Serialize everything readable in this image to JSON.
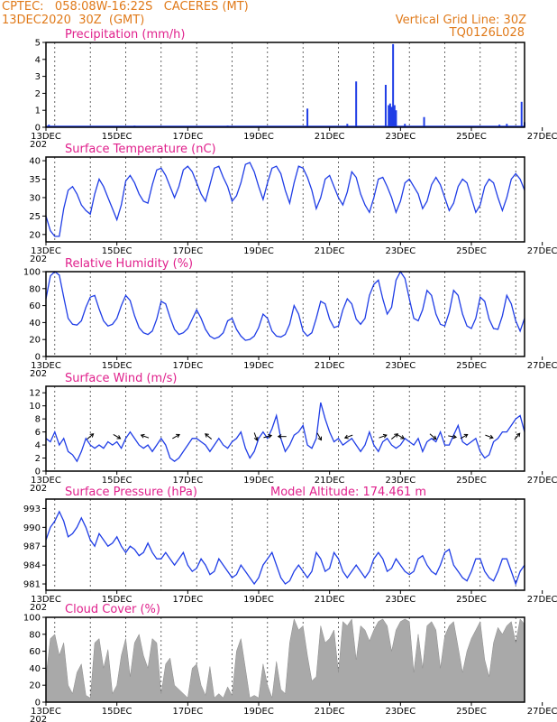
{
  "header": {
    "line1": "CPTEC:   058:08W-16:22S   CACERES (MT)",
    "line2": "13DEC2020  30Z  (GMT)",
    "vertical_grid": "Vertical Grid Line: 30Z",
    "run_id": "TQ0126L028"
  },
  "colors": {
    "header": "#e07a1a",
    "title": "#e0208c",
    "series": "#1f3de6",
    "cloud": "#a9a9a9"
  },
  "x_labels": [
    "13DEC",
    "15DEC",
    "17DEC",
    "19DEC",
    "21DEC",
    "23DEC",
    "25DEC",
    "27DEC"
  ],
  "x_sublabel": "202",
  "chart_data": [
    {
      "id": "precip",
      "type": "bar",
      "title": "Precipitation (mm/h)",
      "ylim": [
        0,
        5
      ],
      "yticks": [
        0,
        1,
        2,
        3,
        4,
        5
      ],
      "x_unit": "hours since 13DEC 00Z",
      "points": [
        [
          2,
          0.15
        ],
        [
          22,
          0.05
        ],
        [
          60,
          0.1
        ],
        [
          123,
          0.1
        ],
        [
          146,
          0.05
        ],
        [
          177,
          1.1
        ],
        [
          204,
          0.2
        ],
        [
          210,
          2.7
        ],
        [
          230,
          2.5
        ],
        [
          232,
          1.3
        ],
        [
          233,
          1.4
        ],
        [
          234,
          1.2
        ],
        [
          235,
          4.9
        ],
        [
          236,
          1.3
        ],
        [
          237,
          1.0
        ],
        [
          243,
          0.2
        ],
        [
          256,
          0.6
        ],
        [
          307,
          0.15
        ],
        [
          312,
          0.2
        ],
        [
          322,
          1.5
        ],
        [
          324,
          0.3
        ]
      ]
    },
    {
      "id": "temp",
      "type": "line",
      "title": "Surface Temperature (nC)",
      "ylim": [
        18,
        41
      ],
      "yticks": [
        20,
        25,
        30,
        35,
        40
      ],
      "x": [
        0,
        3,
        6,
        9,
        12,
        15,
        18,
        21,
        24,
        27,
        30,
        33,
        36,
        39,
        42,
        45,
        48,
        51,
        54,
        57,
        60,
        63,
        66,
        69,
        72,
        75,
        78,
        81,
        84,
        87,
        90,
        93,
        96,
        99,
        102,
        105,
        108,
        111,
        114,
        117,
        120,
        123,
        126,
        129,
        132,
        135,
        138,
        141,
        144,
        147,
        150,
        153,
        156,
        159,
        162,
        165,
        168,
        171,
        174,
        177,
        180,
        183,
        186,
        189,
        192,
        195,
        198,
        201,
        204,
        207,
        210,
        213,
        216,
        219,
        222,
        225,
        228,
        231,
        234,
        237,
        240,
        243,
        246,
        249,
        252,
        255,
        258,
        261,
        264,
        267,
        270,
        273,
        276,
        279,
        282,
        285,
        288,
        291,
        294,
        297,
        300,
        303,
        306,
        309,
        312,
        315,
        318,
        321,
        324
      ],
      "y": [
        25,
        21,
        19.5,
        19.5,
        27,
        32,
        33,
        31,
        28,
        26.5,
        25.5,
        31,
        35,
        33,
        30,
        27,
        24,
        28,
        34.5,
        36,
        34,
        31,
        29,
        28.5,
        33.5,
        37.5,
        38,
        36,
        33,
        30,
        33,
        37.5,
        38.5,
        37,
        34,
        31,
        29,
        33.5,
        38,
        38.5,
        35.5,
        33,
        29,
        30.5,
        34,
        39,
        39.5,
        37,
        33,
        29.5,
        34,
        38,
        38.5,
        36.5,
        32,
        28.5,
        34,
        38.5,
        38,
        35.5,
        32,
        27,
        30,
        35,
        36,
        33,
        30,
        28,
        31.5,
        37,
        35.5,
        31,
        28,
        26,
        30,
        35,
        35.5,
        33,
        30,
        26,
        29,
        34,
        35,
        33,
        31,
        27,
        29,
        33.5,
        35.5,
        33.5,
        30,
        26.5,
        28.5,
        33,
        35,
        34,
        30,
        26,
        28,
        33,
        35,
        34,
        30,
        26.5,
        30,
        35,
        36.5,
        35,
        32
      ]
    },
    {
      "id": "rh",
      "type": "line",
      "title": "Relative Humidity (%)",
      "ylim": [
        0,
        100
      ],
      "yticks": [
        0,
        20,
        40,
        60,
        80,
        100
      ],
      "x": [
        0,
        3,
        6,
        9,
        12,
        15,
        18,
        21,
        24,
        27,
        30,
        33,
        36,
        39,
        42,
        45,
        48,
        51,
        54,
        57,
        60,
        63,
        66,
        69,
        72,
        75,
        78,
        81,
        84,
        87,
        90,
        93,
        96,
        99,
        102,
        105,
        108,
        111,
        114,
        117,
        120,
        123,
        126,
        129,
        132,
        135,
        138,
        141,
        144,
        147,
        150,
        153,
        156,
        159,
        162,
        165,
        168,
        171,
        174,
        177,
        180,
        183,
        186,
        189,
        192,
        195,
        198,
        201,
        204,
        207,
        210,
        213,
        216,
        219,
        222,
        225,
        228,
        231,
        234,
        237,
        240,
        243,
        246,
        249,
        252,
        255,
        258,
        261,
        264,
        267,
        270,
        273,
        276,
        279,
        282,
        285,
        288,
        291,
        294,
        297,
        300,
        303,
        306,
        309,
        312,
        315,
        318,
        321,
        324
      ],
      "y": [
        68,
        95,
        100,
        96,
        70,
        45,
        38,
        37,
        42,
        58,
        70,
        72,
        56,
        42,
        36,
        38,
        45,
        60,
        72,
        66,
        48,
        34,
        28,
        26,
        30,
        44,
        65,
        62,
        46,
        32,
        26,
        28,
        33,
        44,
        55,
        45,
        32,
        24,
        21,
        23,
        28,
        42,
        45,
        32,
        24,
        19,
        20,
        24,
        34,
        50,
        45,
        30,
        24,
        23,
        26,
        38,
        60,
        50,
        30,
        24,
        28,
        45,
        65,
        62,
        44,
        34,
        36,
        55,
        68,
        62,
        44,
        38,
        45,
        72,
        85,
        90,
        68,
        50,
        58,
        90,
        100,
        92,
        68,
        45,
        42,
        55,
        78,
        72,
        50,
        38,
        36,
        52,
        78,
        72,
        50,
        36,
        33,
        45,
        70,
        65,
        44,
        33,
        32,
        48,
        72,
        62,
        42,
        30,
        45
      ]
    },
    {
      "id": "wind",
      "type": "line",
      "title": "Surface Wind (m/s)",
      "ylim": [
        0,
        13
      ],
      "yticks": [
        0,
        2,
        4,
        6,
        8,
        10,
        12
      ],
      "x": [
        0,
        3,
        6,
        9,
        12,
        15,
        18,
        21,
        24,
        27,
        30,
        33,
        36,
        39,
        42,
        45,
        48,
        51,
        54,
        57,
        60,
        63,
        66,
        69,
        72,
        75,
        78,
        81,
        84,
        87,
        90,
        93,
        96,
        99,
        102,
        105,
        108,
        111,
        114,
        117,
        120,
        123,
        126,
        129,
        132,
        135,
        138,
        141,
        144,
        147,
        150,
        153,
        156,
        159,
        162,
        165,
        168,
        171,
        174,
        177,
        180,
        183,
        186,
        189,
        192,
        195,
        198,
        201,
        204,
        207,
        210,
        213,
        216,
        219,
        222,
        225,
        228,
        231,
        234,
        237,
        240,
        243,
        246,
        249,
        252,
        255,
        258,
        261,
        264,
        267,
        270,
        273,
        276,
        279,
        282,
        285,
        288,
        291,
        294,
        297,
        300,
        303,
        306,
        309,
        312,
        315,
        318,
        321,
        324
      ],
      "y": [
        5,
        4.5,
        6,
        4,
        5,
        3,
        2.5,
        1.5,
        3,
        5,
        4,
        3.5,
        4,
        3.5,
        4.5,
        4,
        4.5,
        3.5,
        5,
        6,
        5,
        4,
        3.5,
        4,
        3,
        4,
        5,
        4,
        2,
        1.5,
        2,
        3,
        4,
        5,
        5,
        4.5,
        4,
        3,
        4,
        5,
        4,
        3.5,
        4.5,
        5,
        6,
        3.5,
        2,
        3,
        5,
        6,
        5,
        6.5,
        8.5,
        5,
        3,
        4,
        5.5,
        6,
        7,
        4,
        3.5,
        5,
        10.5,
        8,
        6,
        4.5,
        5,
        4,
        4.5,
        5,
        4,
        3,
        4,
        6,
        4,
        3,
        4.5,
        5,
        4,
        3.5,
        4,
        5,
        4.5,
        4,
        5,
        3,
        4.5,
        5,
        4.5,
        6,
        4,
        4,
        5.5,
        7,
        4.5,
        4,
        4.5,
        5,
        3,
        2,
        2.5,
        4.5,
        5,
        6,
        6,
        7,
        8,
        8.5,
        6
      ]
    },
    {
      "id": "pres",
      "type": "line",
      "title": "Surface Pressure (hPa)",
      "model_altitude": "Model Altitude: 174.461  m",
      "ylim": [
        980,
        994.5
      ],
      "yticks": [
        981,
        984,
        987,
        990,
        993
      ],
      "x": [
        0,
        3,
        6,
        9,
        12,
        15,
        18,
        21,
        24,
        27,
        30,
        33,
        36,
        39,
        42,
        45,
        48,
        51,
        54,
        57,
        60,
        63,
        66,
        69,
        72,
        75,
        78,
        81,
        84,
        87,
        90,
        93,
        96,
        99,
        102,
        105,
        108,
        111,
        114,
        117,
        120,
        123,
        126,
        129,
        132,
        135,
        138,
        141,
        144,
        147,
        150,
        153,
        156,
        159,
        162,
        165,
        168,
        171,
        174,
        177,
        180,
        183,
        186,
        189,
        192,
        195,
        198,
        201,
        204,
        207,
        210,
        213,
        216,
        219,
        222,
        225,
        228,
        231,
        234,
        237,
        240,
        243,
        246,
        249,
        252,
        255,
        258,
        261,
        264,
        267,
        270,
        273,
        276,
        279,
        282,
        285,
        288,
        291,
        294,
        297,
        300,
        303,
        306,
        309,
        312,
        315,
        318,
        321,
        324
      ],
      "y": [
        988,
        990,
        991,
        992.5,
        991,
        988.5,
        989,
        990,
        991.5,
        990,
        988,
        987,
        989,
        988,
        987,
        987.5,
        988.5,
        987,
        986,
        987,
        986.5,
        985.5,
        986,
        987.5,
        986,
        985,
        985,
        986,
        985,
        984,
        985,
        986,
        984,
        983,
        983.5,
        985,
        984,
        982.5,
        983,
        985,
        984,
        983,
        982,
        982.5,
        984,
        983,
        982,
        981,
        982,
        984,
        985,
        986,
        984,
        982,
        981,
        981.5,
        983,
        984,
        983,
        982,
        983,
        986,
        985,
        983,
        983.5,
        986,
        985,
        983,
        982,
        983,
        984,
        983,
        982,
        983,
        985,
        986,
        985,
        983,
        983.5,
        985,
        984,
        983,
        982.5,
        983,
        985,
        985.5,
        984,
        983,
        982.5,
        984,
        986,
        986.5,
        984,
        983,
        982,
        981.5,
        983,
        985,
        985,
        983,
        982,
        981.5,
        983,
        985,
        985,
        983,
        981,
        983,
        984
      ]
    },
    {
      "id": "cloud",
      "type": "area",
      "title": "Cloud Cover (%)",
      "ylim": [
        0,
        100
      ],
      "yticks": [
        0,
        20,
        40,
        60,
        80,
        100
      ],
      "x": [
        0,
        3,
        6,
        9,
        12,
        15,
        18,
        21,
        24,
        27,
        30,
        33,
        36,
        39,
        42,
        45,
        48,
        51,
        54,
        57,
        60,
        63,
        66,
        69,
        72,
        75,
        78,
        81,
        84,
        87,
        90,
        93,
        96,
        99,
        102,
        105,
        108,
        111,
        114,
        117,
        120,
        123,
        126,
        129,
        132,
        135,
        138,
        141,
        144,
        147,
        150,
        153,
        156,
        159,
        162,
        165,
        168,
        171,
        174,
        177,
        180,
        183,
        186,
        189,
        192,
        195,
        198,
        201,
        204,
        207,
        210,
        213,
        216,
        219,
        222,
        225,
        228,
        231,
        234,
        237,
        240,
        243,
        246,
        249,
        252,
        255,
        258,
        261,
        264,
        267,
        270,
        273,
        276,
        279,
        282,
        285,
        288,
        291,
        294,
        297,
        300,
        303,
        306,
        309,
        312,
        315,
        318,
        321,
        324
      ],
      "y": [
        30,
        75,
        80,
        55,
        70,
        20,
        10,
        35,
        45,
        8,
        5,
        70,
        75,
        40,
        62,
        10,
        20,
        55,
        75,
        30,
        70,
        80,
        55,
        40,
        75,
        70,
        10,
        45,
        52,
        20,
        15,
        10,
        5,
        40,
        45,
        20,
        8,
        42,
        5,
        10,
        5,
        18,
        8,
        60,
        75,
        40,
        5,
        8,
        5,
        45,
        20,
        5,
        48,
        15,
        10,
        70,
        98,
        85,
        90,
        55,
        25,
        30,
        90,
        70,
        75,
        85,
        35,
        95,
        90,
        98,
        50,
        90,
        85,
        72,
        85,
        95,
        98,
        90,
        60,
        85,
        95,
        98,
        95,
        35,
        80,
        40,
        90,
        95,
        85,
        40,
        78,
        90,
        95,
        65,
        35,
        60,
        75,
        85,
        95,
        50,
        30,
        70,
        88,
        80,
        90,
        95,
        70,
        98,
        92
      ]
    }
  ]
}
